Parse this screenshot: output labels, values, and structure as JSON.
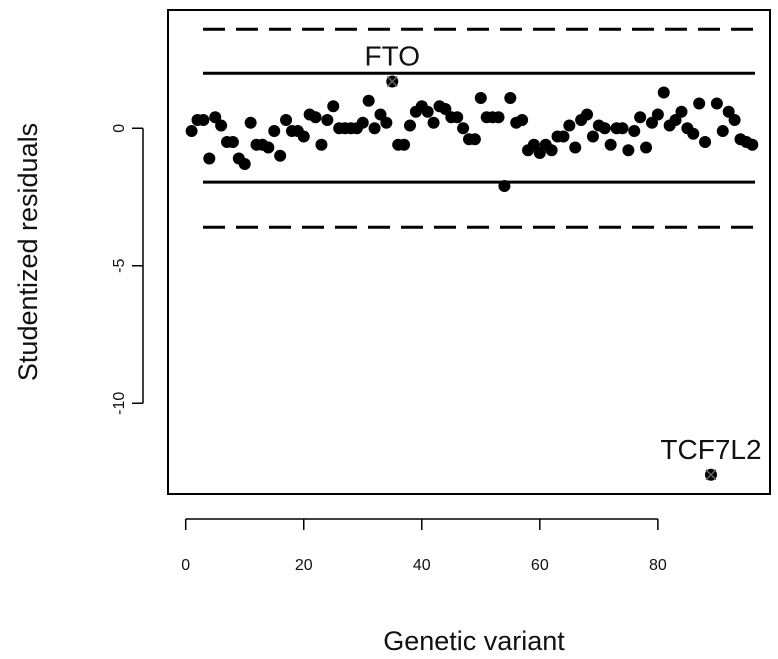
{
  "chart_data": {
    "type": "scatter",
    "title": "",
    "xlabel": "Genetic variant",
    "ylabel": "Studentized residuals",
    "xlim": [
      -3,
      99
    ],
    "ylim": [
      -13.3,
      4.3
    ],
    "x_ticks": [
      0,
      20,
      40,
      60,
      80
    ],
    "y_ticks": [
      0,
      -5,
      -10
    ],
    "grid": false,
    "legend": "none",
    "reference_lines": [
      {
        "y": 3.6,
        "style": "dashed"
      },
      {
        "y": 2.0,
        "style": "solid"
      },
      {
        "y": -1.96,
        "style": "solid"
      },
      {
        "y": -3.6,
        "style": "dashed"
      }
    ],
    "series": [
      {
        "marker": "filled-circle",
        "points": [
          [
            1,
            -0.1
          ],
          [
            2,
            0.3
          ],
          [
            3,
            0.3
          ],
          [
            4,
            -1.1
          ],
          [
            5,
            0.4
          ],
          [
            6,
            0.1
          ],
          [
            7,
            -0.5
          ],
          [
            8,
            -0.5
          ],
          [
            9,
            -1.1
          ],
          [
            10,
            -1.3
          ],
          [
            11,
            0.2
          ],
          [
            12,
            -0.6
          ],
          [
            13,
            -0.6
          ],
          [
            14,
            -0.7
          ],
          [
            15,
            -0.1
          ],
          [
            16,
            -1.0
          ],
          [
            17,
            0.3
          ],
          [
            18,
            -0.1
          ],
          [
            19,
            -0.1
          ],
          [
            20,
            -0.3
          ],
          [
            21,
            0.5
          ],
          [
            22,
            0.4
          ],
          [
            23,
            -0.6
          ],
          [
            24,
            0.3
          ],
          [
            25,
            0.8
          ],
          [
            26,
            0.0
          ],
          [
            27,
            0.0
          ],
          [
            28,
            0.0
          ],
          [
            29,
            0.0
          ],
          [
            30,
            0.2
          ],
          [
            31,
            1.0
          ],
          [
            32,
            0.0
          ],
          [
            33,
            0.5
          ],
          [
            34,
            0.2
          ],
          [
            36,
            -0.6
          ],
          [
            37,
            -0.6
          ],
          [
            38,
            0.1
          ],
          [
            39,
            0.6
          ],
          [
            40,
            0.8
          ],
          [
            41,
            0.6
          ],
          [
            42,
            0.2
          ],
          [
            43,
            0.8
          ],
          [
            44,
            0.7
          ],
          [
            45,
            0.4
          ],
          [
            46,
            0.4
          ],
          [
            47,
            0.0
          ],
          [
            48,
            -0.4
          ],
          [
            49,
            -0.4
          ],
          [
            50,
            1.1
          ],
          [
            51,
            0.4
          ],
          [
            52,
            0.4
          ],
          [
            53,
            0.4
          ],
          [
            54,
            -2.1
          ],
          [
            55,
            1.1
          ],
          [
            56,
            0.2
          ],
          [
            57,
            0.3
          ],
          [
            58,
            -0.8
          ],
          [
            59,
            -0.6
          ],
          [
            60,
            -0.9
          ],
          [
            61,
            -0.6
          ],
          [
            62,
            -0.8
          ],
          [
            63,
            -0.3
          ],
          [
            64,
            -0.3
          ],
          [
            65,
            0.1
          ],
          [
            66,
            -0.7
          ],
          [
            67,
            0.3
          ],
          [
            68,
            0.5
          ],
          [
            69,
            -0.3
          ],
          [
            70,
            0.1
          ],
          [
            71,
            0.0
          ],
          [
            72,
            -0.6
          ],
          [
            73,
            0.0
          ],
          [
            74,
            0.0
          ],
          [
            75,
            -0.8
          ],
          [
            76,
            -0.1
          ],
          [
            77,
            0.4
          ],
          [
            78,
            -0.7
          ],
          [
            79,
            0.2
          ],
          [
            80,
            0.5
          ],
          [
            81,
            1.3
          ],
          [
            82,
            0.1
          ],
          [
            83,
            0.3
          ],
          [
            84,
            0.6
          ],
          [
            85,
            0.0
          ],
          [
            86,
            -0.2
          ],
          [
            87,
            0.9
          ],
          [
            88,
            -0.5
          ],
          [
            90,
            0.9
          ],
          [
            91,
            -0.1
          ],
          [
            92,
            0.6
          ],
          [
            93,
            0.3
          ],
          [
            94,
            -0.4
          ],
          [
            95,
            -0.5
          ],
          [
            96,
            -0.6
          ]
        ]
      },
      {
        "marker": "filled-circle-cross",
        "points": [
          [
            35,
            1.7
          ],
          [
            89,
            -12.6
          ]
        ]
      }
    ],
    "annotations": [
      {
        "text": "FTO",
        "x": 35,
        "y": 1.7
      },
      {
        "text": "TCF7L2",
        "x": 89,
        "y": -12.6
      }
    ]
  }
}
